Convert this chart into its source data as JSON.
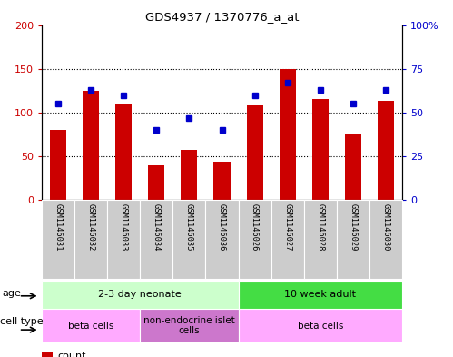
{
  "title": "GDS4937 / 1370776_a_at",
  "samples": [
    "GSM1146031",
    "GSM1146032",
    "GSM1146033",
    "GSM1146034",
    "GSM1146035",
    "GSM1146036",
    "GSM1146026",
    "GSM1146027",
    "GSM1146028",
    "GSM1146029",
    "GSM1146030"
  ],
  "counts": [
    80,
    125,
    110,
    40,
    57,
    44,
    108,
    150,
    115,
    75,
    113
  ],
  "percentiles": [
    55,
    63,
    60,
    40,
    47,
    40,
    60,
    67,
    63,
    55,
    63
  ],
  "bar_color": "#cc0000",
  "dot_color": "#0000cc",
  "ylim_left": [
    0,
    200
  ],
  "ylim_right": [
    0,
    100
  ],
  "yticks_left": [
    0,
    50,
    100,
    150,
    200
  ],
  "ytick_labels_left": [
    "0",
    "50",
    "100",
    "150",
    "200"
  ],
  "yticks_right": [
    0,
    25,
    50,
    75,
    100
  ],
  "ytick_labels_right": [
    "0",
    "25",
    "50",
    "75",
    "100%"
  ],
  "age_groups": [
    {
      "label": "2-3 day neonate",
      "start": 0,
      "end": 6,
      "color": "#ccffcc"
    },
    {
      "label": "10 week adult",
      "start": 6,
      "end": 11,
      "color": "#44dd44"
    }
  ],
  "cell_type_groups": [
    {
      "label": "beta cells",
      "start": 0,
      "end": 3,
      "color": "#ffaaff"
    },
    {
      "label": "non-endocrine islet\ncells",
      "start": 3,
      "end": 6,
      "color": "#cc77cc"
    },
    {
      "label": "beta cells",
      "start": 6,
      "end": 11,
      "color": "#ffaaff"
    }
  ],
  "legend_count_color": "#cc0000",
  "legend_dot_color": "#0000cc",
  "grid_color": "#000000",
  "axis_label_color_left": "#cc0000",
  "axis_label_color_right": "#0000cc",
  "sample_box_color": "#cccccc",
  "age_row_label": "age",
  "cell_type_row_label": "cell type"
}
